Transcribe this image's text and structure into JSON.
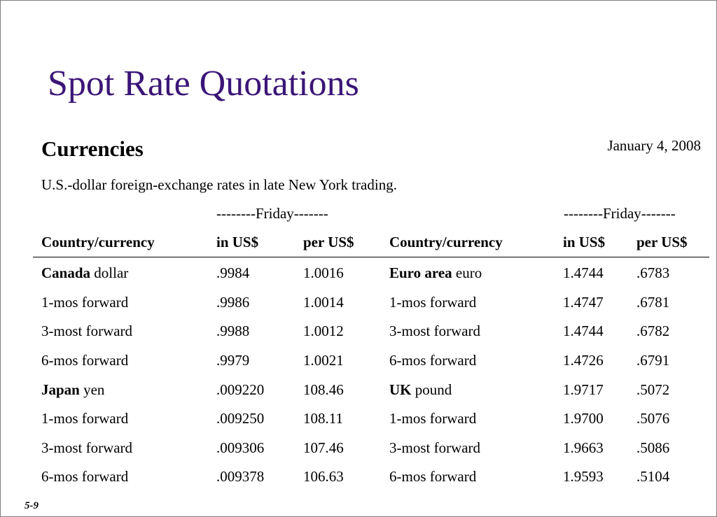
{
  "slide": {
    "title": "Spot Rate Quotations",
    "heading": "Currencies",
    "date": "January 4, 2008",
    "subtitle": "U.S.-dollar foreign-exchange rates in late New York trading.",
    "friday_label_left": "--------Friday-------",
    "friday_label_right": "--------Friday-------",
    "page_ref": "5-9",
    "title_color": "#3b1577"
  },
  "table": {
    "headers": [
      "Country/currency",
      "in US$",
      "per US$",
      "Country/currency",
      "in US$",
      "per US$"
    ],
    "rows": [
      {
        "left_bold": "Canada",
        "left_rest": " dollar",
        "left_in": ".9984",
        "left_per": "1.0016",
        "right_bold": "Euro area",
        "right_rest": " euro",
        "right_in": "1.4744",
        "right_per": ".6783"
      },
      {
        "left_bold": "",
        "left_rest": "1-mos forward",
        "left_in": ".9986",
        "left_per": "1.0014",
        "right_bold": "",
        "right_rest": "1-mos forward",
        "right_in": "1.4747",
        "right_per": ".6781"
      },
      {
        "left_bold": "",
        "left_rest": "3-most forward",
        "left_in": ".9988",
        "left_per": "1.0012",
        "right_bold": "",
        "right_rest": "3-most forward",
        "right_in": "1.4744",
        "right_per": ".6782"
      },
      {
        "left_bold": "",
        "left_rest": "6-mos forward",
        "left_in": ".9979",
        "left_per": "1.0021",
        "right_bold": "",
        "right_rest": "6-mos forward",
        "right_in": "1.4726",
        "right_per": ".6791"
      },
      {
        "left_bold": "Japan",
        "left_rest": " yen",
        "left_in": ".009220",
        "left_per": "108.46",
        "right_bold": "UK",
        "right_rest": " pound",
        "right_in": "1.9717",
        "right_per": ".5072"
      },
      {
        "left_bold": "",
        "left_rest": "1-mos forward",
        "left_in": ".009250",
        "left_per": "108.11",
        "right_bold": "",
        "right_rest": "1-mos forward",
        "right_in": "1.9700",
        "right_per": ".5076"
      },
      {
        "left_bold": "",
        "left_rest": "3-most forward",
        "left_in": ".009306",
        "left_per": "107.46",
        "right_bold": "",
        "right_rest": "3-most forward",
        "right_in": "1.9663",
        "right_per": ".5086"
      },
      {
        "left_bold": "",
        "left_rest": "6-mos forward",
        "left_in": ".009378",
        "left_per": "106.63",
        "right_bold": "",
        "right_rest": "6-mos forward",
        "right_in": "1.9593",
        "right_per": ".5104"
      }
    ]
  }
}
